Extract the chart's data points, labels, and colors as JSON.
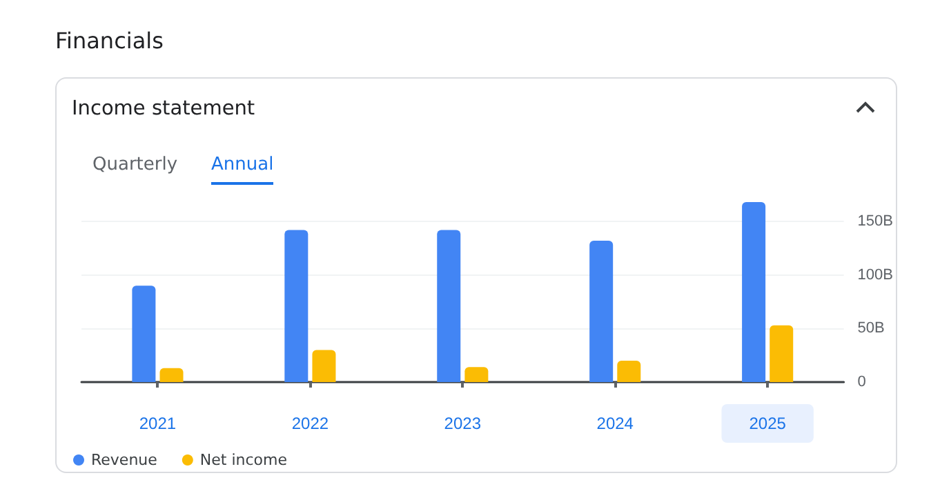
{
  "chart_data": {
    "type": "bar",
    "title": "Financials",
    "subtitle": "Income statement",
    "annotations": [
      "Quarterly",
      "Annual"
    ],
    "categories": [
      "2021",
      "2022",
      "2023",
      "2024",
      "2025"
    ],
    "series": [
      {
        "name": "Revenue",
        "color": "#4285f4",
        "values": [
          90,
          142,
          142,
          132,
          168
        ]
      },
      {
        "name": "Net income",
        "color": "#fbbc04",
        "values": [
          13,
          30,
          14,
          20,
          53
        ]
      }
    ],
    "ylim": [
      0,
      170
    ],
    "yticks": [
      {
        "value": 0,
        "label": "0"
      },
      {
        "value": 50,
        "label": "50B"
      },
      {
        "value": 100,
        "label": "100B"
      },
      {
        "value": 150,
        "label": "150B"
      }
    ],
    "grid": "y",
    "legend": "bottom left"
  }
}
